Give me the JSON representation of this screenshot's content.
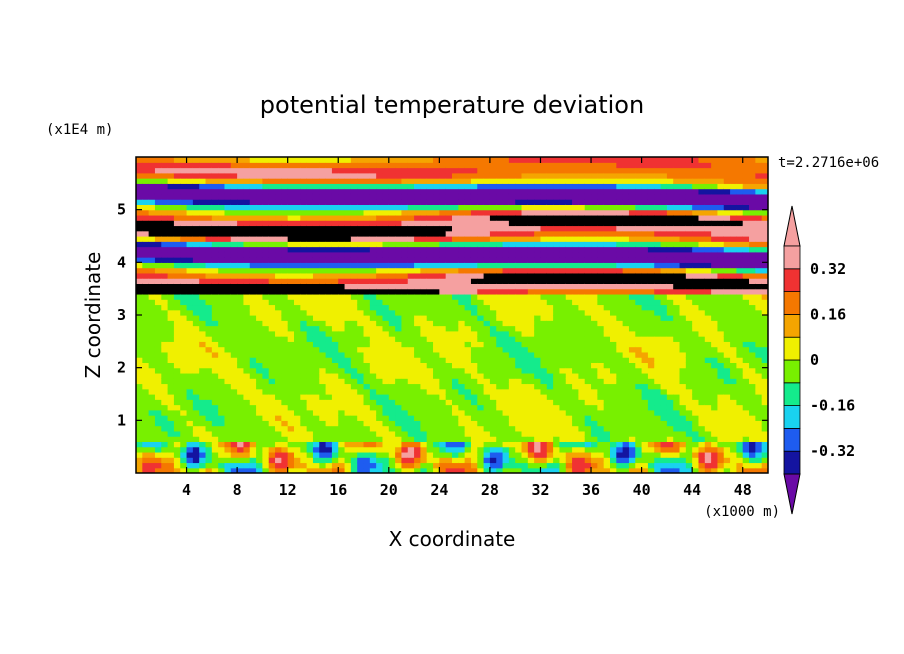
{
  "chart_data": {
    "type": "heatmap",
    "title": "potential temperature deviation",
    "xlabel": "X coordinate",
    "ylabel": "Z coordinate",
    "x_unit": "(x1000 m)",
    "y_unit": "(x1E4 m)",
    "time_label": "t=2.2716e+06",
    "x_ticks": [
      4,
      8,
      12,
      16,
      20,
      24,
      28,
      32,
      36,
      40,
      44,
      48
    ],
    "y_ticks": [
      1,
      2,
      3,
      4,
      5
    ],
    "xlim": [
      0,
      50
    ],
    "ylim": [
      0,
      6
    ],
    "colorbar": {
      "levels": [
        -0.4,
        -0.32,
        -0.24,
        -0.16,
        -0.08,
        0,
        0.08,
        0.16,
        0.24,
        0.32,
        0.4
      ],
      "labels": [
        "0.32",
        "0.16",
        "0",
        "-0.16",
        "-0.32"
      ],
      "label_values": [
        0.32,
        0.16,
        0,
        -0.16,
        -0.32
      ],
      "colors": [
        "#6a0aa6",
        "#1414a0",
        "#1e5cf0",
        "#19d2f0",
        "#14eb8c",
        "#78f000",
        "#f0f000",
        "#f5a500",
        "#f57800",
        "#f03232",
        "#f5a0a0"
      ],
      "extend": "both"
    }
  }
}
